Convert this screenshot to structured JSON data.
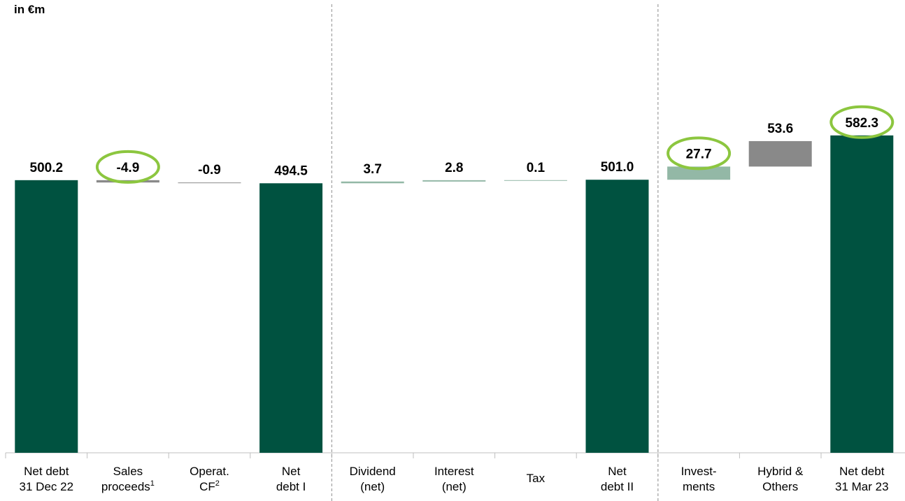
{
  "unit_label": "in €m",
  "colors": {
    "total": "#005240",
    "step_light": "#93b8a6",
    "step_gray": "#898989",
    "highlight": "#8cc63f",
    "axis": "#bfbfbf",
    "divider": "#a6a6a6"
  },
  "chart_data": {
    "type": "bar",
    "subtype": "waterfall",
    "title": "",
    "ylabel": "",
    "xlabel": "",
    "categories": [
      "Net debt 31 Dec 22",
      "Sales proceeds¹",
      "Operat. CF²",
      "Net debt I",
      "Dividend (net)",
      "Interest (net)",
      "Tax",
      "Net debt II",
      "Invest-ments",
      "Hybrid & Others",
      "Net debt 31 Mar 23"
    ],
    "bars": [
      {
        "kind": "total",
        "value": 500.2,
        "label": "500.2",
        "circled": false,
        "color": "total",
        "category_lines": [
          "Net debt",
          "31 Dec 22"
        ]
      },
      {
        "kind": "delta",
        "value": -4.9,
        "label": "-4.9",
        "circled": true,
        "color": "step_gray",
        "category_lines": [
          "Sales",
          "proceeds|1"
        ]
      },
      {
        "kind": "delta",
        "value": -0.9,
        "label": "-0.9",
        "circled": false,
        "color": "step_gray",
        "category_lines": [
          "Operat.",
          "CF|2"
        ]
      },
      {
        "kind": "total",
        "value": 494.5,
        "label": "494.5",
        "circled": false,
        "color": "total",
        "category_lines": [
          "Net",
          "debt I"
        ]
      },
      {
        "kind": "delta",
        "value": 3.7,
        "label": "3.7",
        "circled": false,
        "color": "step_light",
        "category_lines": [
          "Dividend",
          "(net)"
        ]
      },
      {
        "kind": "delta",
        "value": 2.8,
        "label": "2.8",
        "circled": false,
        "color": "step_light",
        "category_lines": [
          "Interest",
          "(net)"
        ]
      },
      {
        "kind": "delta",
        "value": 0.1,
        "label": "0.1",
        "circled": false,
        "color": "step_light",
        "category_lines": [
          "Tax"
        ]
      },
      {
        "kind": "total",
        "value": 501.0,
        "label": "501.0",
        "circled": false,
        "color": "total",
        "category_lines": [
          "Net",
          "debt II"
        ]
      },
      {
        "kind": "delta",
        "value": 27.7,
        "label": "27.7",
        "circled": true,
        "color": "step_light",
        "category_lines": [
          "Invest-",
          "ments"
        ]
      },
      {
        "kind": "delta",
        "value": 53.6,
        "label": "53.6",
        "circled": false,
        "color": "step_gray",
        "category_lines": [
          "Hybrid &",
          "Others"
        ]
      },
      {
        "kind": "total",
        "value": 582.3,
        "label": "582.3",
        "circled": true,
        "color": "total",
        "category_lines": [
          "Net debt",
          "31 Mar 23"
        ]
      }
    ],
    "group_dividers_after_index": [
      3,
      7
    ],
    "grid": false,
    "legend": "none"
  }
}
